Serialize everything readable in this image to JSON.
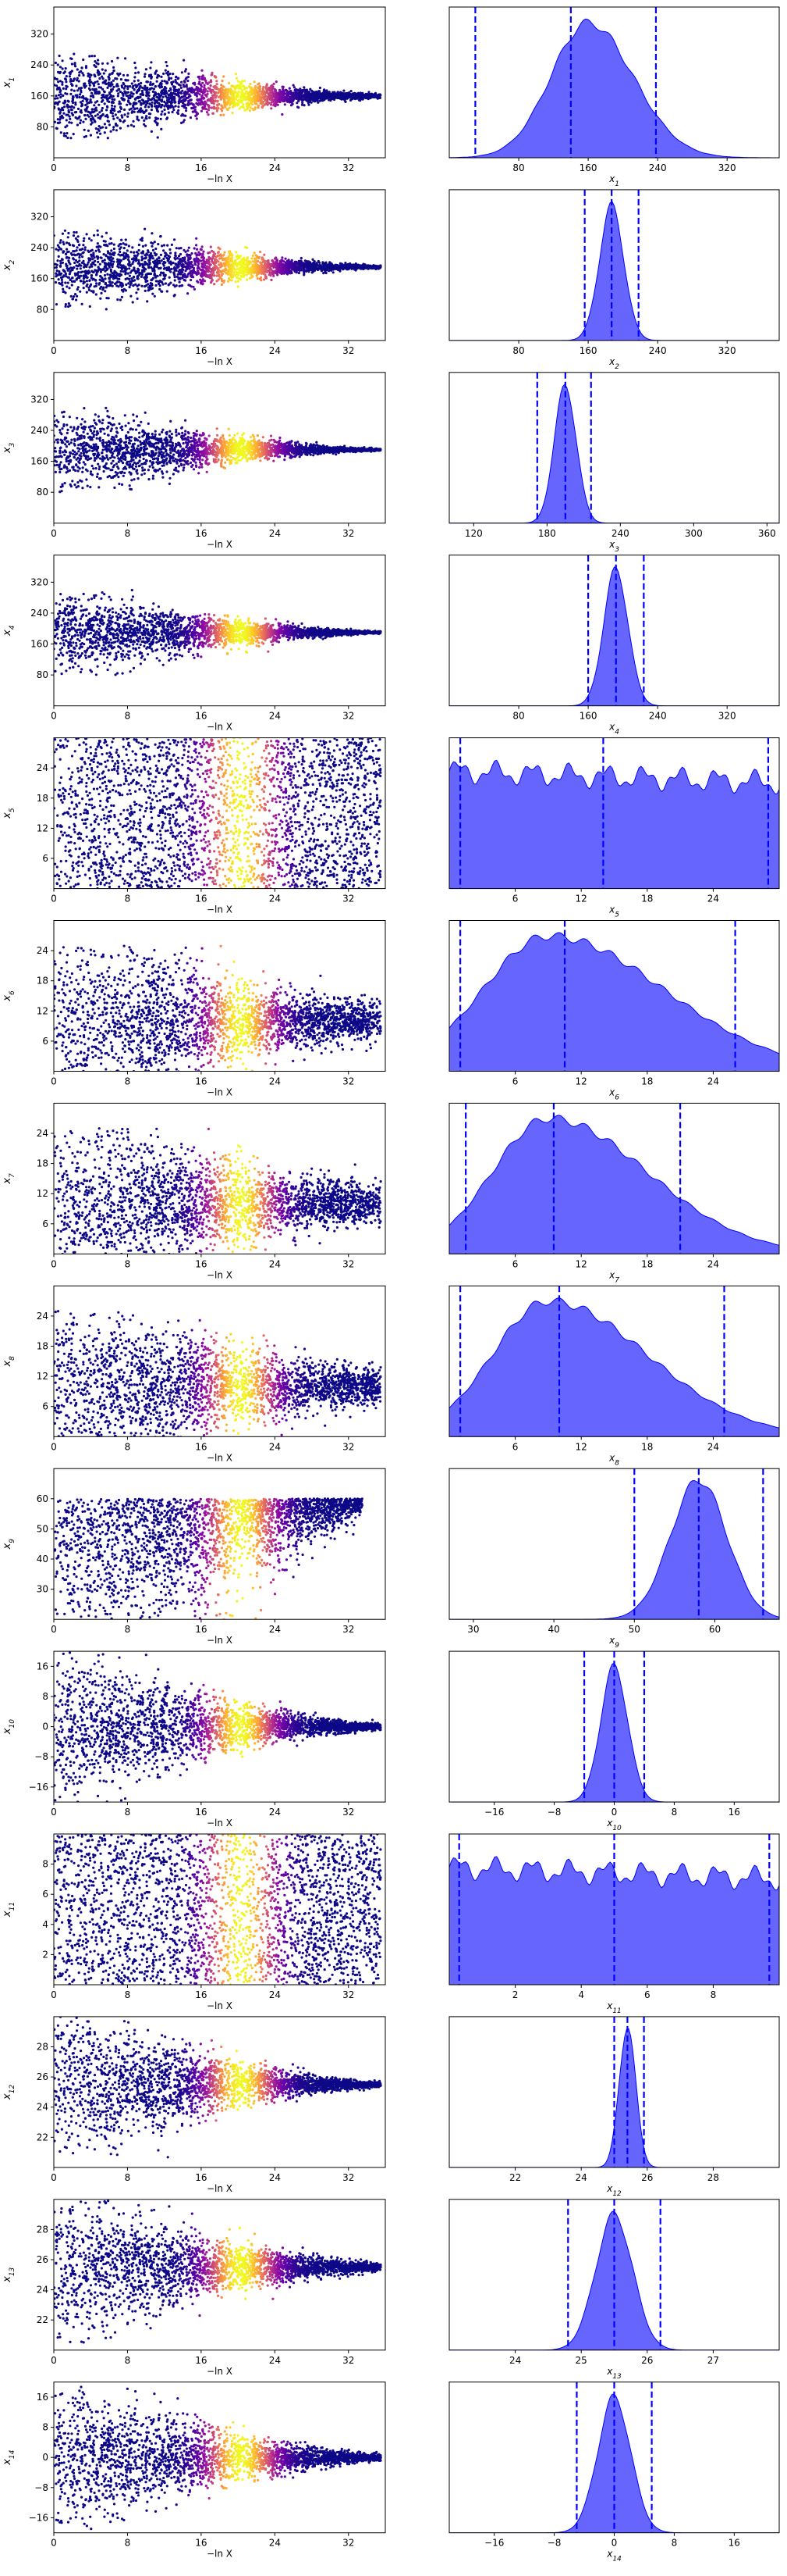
{
  "figure": {
    "colormap": [
      "#0d0887",
      "#5302a3",
      "#8b0aa5",
      "#b83289",
      "#db5c68",
      "#f48849",
      "#febd2a",
      "#f0f921"
    ],
    "hist_fill": "#0000ff",
    "hist_line": "#0000ff"
  },
  "chart_data": [
    {
      "type": "scatter",
      "row": 1,
      "param_label": "x_1",
      "xlabel": "−ln X",
      "xlim": [
        0,
        36
      ],
      "xticks": [
        0,
        8,
        16,
        24,
        32
      ],
      "ylim": [
        0,
        390
      ],
      "yticks": [
        80,
        160,
        240,
        320
      ],
      "center": 160,
      "spread": 110,
      "converge_start": 20,
      "converge_end": 36,
      "final_spread": 6,
      "mode": "funnel"
    },
    {
      "type": "area",
      "row": 1,
      "param_label": "x_1",
      "xlim": [
        0,
        380
      ],
      "xticks": [
        80,
        160,
        240,
        320
      ],
      "mu": 160,
      "sigma": 45,
      "skew": 0.15,
      "quantiles": [
        30,
        140,
        238
      ],
      "peak": 0.92
    },
    {
      "type": "scatter",
      "row": 2,
      "param_label": "x_2",
      "xlabel": "−ln X",
      "xlim": [
        0,
        36
      ],
      "xticks": [
        0,
        8,
        16,
        24,
        32
      ],
      "ylim": [
        0,
        390
      ],
      "yticks": [
        80,
        160,
        240,
        320
      ],
      "center": 190,
      "spread": 110,
      "converge_start": 18,
      "converge_end": 36,
      "final_spread": 4,
      "mode": "funnel"
    },
    {
      "type": "area",
      "row": 2,
      "param_label": "x_2",
      "xlim": [
        0,
        380
      ],
      "xticks": [
        80,
        160,
        240,
        320
      ],
      "mu": 187,
      "sigma": 14,
      "skew": 0,
      "quantiles": [
        156,
        187,
        218
      ],
      "peak": 0.92
    },
    {
      "type": "scatter",
      "row": 3,
      "param_label": "x_3",
      "xlabel": "−ln X",
      "xlim": [
        0,
        36
      ],
      "xticks": [
        0,
        8,
        16,
        24,
        32
      ],
      "ylim": [
        0,
        390
      ],
      "yticks": [
        80,
        160,
        240,
        320
      ],
      "center": 190,
      "spread": 110,
      "converge_start": 12,
      "converge_end": 36,
      "final_spread": 3,
      "mode": "funnel"
    },
    {
      "type": "area",
      "row": 3,
      "param_label": "x_3",
      "xlim": [
        100,
        370
      ],
      "xticks": [
        120,
        180,
        240,
        300,
        360
      ],
      "mu": 195,
      "sigma": 9,
      "skew": 0,
      "quantiles": [
        172,
        195,
        216
      ],
      "peak": 0.92
    },
    {
      "type": "scatter",
      "row": 4,
      "param_label": "x_4",
      "xlabel": "−ln X",
      "xlim": [
        0,
        36
      ],
      "xticks": [
        0,
        8,
        16,
        24,
        32
      ],
      "ylim": [
        0,
        390
      ],
      "yticks": [
        80,
        160,
        240,
        320
      ],
      "center": 190,
      "spread": 110,
      "converge_start": 10,
      "converge_end": 36,
      "final_spread": 3,
      "mode": "funnel"
    },
    {
      "type": "area",
      "row": 4,
      "param_label": "x_4",
      "xlim": [
        0,
        380
      ],
      "xticks": [
        80,
        160,
        240,
        320
      ],
      "mu": 192,
      "sigma": 14,
      "skew": 0,
      "quantiles": [
        160,
        192,
        224
      ],
      "peak": 0.92
    },
    {
      "type": "scatter",
      "row": 5,
      "param_label": "x_5",
      "xlabel": "−ln X",
      "xlim": [
        0,
        36
      ],
      "xticks": [
        0,
        8,
        16,
        24,
        32
      ],
      "ylim": [
        0,
        30
      ],
      "yticks": [
        6,
        12,
        18,
        24
      ],
      "center": 15,
      "spread": 15,
      "converge_start": 30,
      "converge_end": 36,
      "final_spread": 12,
      "mode": "uniform"
    },
    {
      "type": "area",
      "row": 5,
      "param_label": "x_5",
      "xlim": [
        0,
        30
      ],
      "xticks": [
        6,
        12,
        18,
        24
      ],
      "mu": 14,
      "sigma": 40,
      "skew": 0,
      "quantiles": [
        1,
        14,
        29
      ],
      "peak": 0.85,
      "flat": true
    },
    {
      "type": "scatter",
      "row": 6,
      "param_label": "x_6",
      "xlabel": "−ln X",
      "xlim": [
        0,
        36
      ],
      "xticks": [
        0,
        8,
        16,
        24,
        32
      ],
      "ylim": [
        0,
        30
      ],
      "yticks": [
        6,
        12,
        18,
        24
      ],
      "center": 10,
      "spread": 15,
      "converge_start": 22,
      "converge_end": 36,
      "final_spread": 4,
      "mode": "funnel"
    },
    {
      "type": "area",
      "row": 6,
      "param_label": "x_6",
      "xlim": [
        0,
        30
      ],
      "xticks": [
        6,
        12,
        18,
        24
      ],
      "mu": 9,
      "sigma": 7,
      "skew": 0.5,
      "quantiles": [
        1,
        10.5,
        26
      ],
      "peak": 0.92
    },
    {
      "type": "scatter",
      "row": 7,
      "param_label": "x_7",
      "xlabel": "−ln X",
      "xlim": [
        0,
        36
      ],
      "xticks": [
        0,
        8,
        16,
        24,
        32
      ],
      "ylim": [
        0,
        30
      ],
      "yticks": [
        6,
        12,
        18,
        24
      ],
      "center": 10,
      "spread": 15,
      "converge_start": 22,
      "converge_end": 36,
      "final_spread": 4,
      "mode": "funnel"
    },
    {
      "type": "area",
      "row": 7,
      "param_label": "x_7",
      "xlim": [
        0,
        30
      ],
      "xticks": [
        6,
        12,
        18,
        24
      ],
      "mu": 9,
      "sigma": 6,
      "skew": 0.5,
      "quantiles": [
        1.5,
        9.5,
        21
      ],
      "peak": 0.92
    },
    {
      "type": "scatter",
      "row": 8,
      "param_label": "x_8",
      "xlabel": "−ln X",
      "xlim": [
        0,
        36
      ],
      "xticks": [
        0,
        8,
        16,
        24,
        32
      ],
      "ylim": [
        0,
        30
      ],
      "yticks": [
        6,
        12,
        18,
        24
      ],
      "center": 10,
      "spread": 15,
      "converge_start": 22,
      "converge_end": 36,
      "final_spread": 4,
      "mode": "funnel"
    },
    {
      "type": "area",
      "row": 8,
      "param_label": "x_8",
      "xlim": [
        0,
        30
      ],
      "xticks": [
        6,
        12,
        18,
        24
      ],
      "mu": 9,
      "sigma": 6,
      "skew": 0.5,
      "quantiles": [
        1,
        10,
        25
      ],
      "peak": 0.92
    },
    {
      "type": "scatter",
      "row": 9,
      "param_label": "x_9",
      "xlabel": "−ln X",
      "xlim": [
        0,
        36
      ],
      "xticks": [
        0,
        8,
        16,
        24,
        32
      ],
      "ylim": [
        20,
        70
      ],
      "yticks": [
        30,
        40,
        50,
        60
      ],
      "center": 60,
      "spread": 35,
      "converge_start": 18,
      "converge_end": 34,
      "final_spread": 2,
      "mode": "rise"
    },
    {
      "type": "area",
      "row": 9,
      "param_label": "x_9",
      "xlim": [
        27,
        68
      ],
      "xticks": [
        30,
        40,
        50,
        60
      ],
      "mu": 58,
      "sigma": 3.5,
      "skew": 0,
      "quantiles": [
        50,
        58,
        66
      ],
      "peak": 0.92
    },
    {
      "type": "scatter",
      "row": 10,
      "param_label": "x_10",
      "xlabel": "−ln X",
      "xlim": [
        0,
        36
      ],
      "xticks": [
        0,
        8,
        16,
        24,
        32
      ],
      "ylim": [
        -20,
        20
      ],
      "yticks": [
        -16,
        -8,
        0,
        8,
        16
      ],
      "center": 0,
      "spread": 20,
      "converge_start": 12,
      "converge_end": 36,
      "final_spread": 1,
      "mode": "funnel"
    },
    {
      "type": "area",
      "row": 10,
      "param_label": "x_10",
      "xlim": [
        -22,
        22
      ],
      "xticks": [
        -16,
        -8,
        0,
        8,
        16
      ],
      "mu": 0,
      "sigma": 1.8,
      "skew": 0,
      "quantiles": [
        -4,
        0,
        4
      ],
      "peak": 0.92
    },
    {
      "type": "scatter",
      "row": 11,
      "param_label": "x_11",
      "xlabel": "−ln X",
      "xlim": [
        0,
        36
      ],
      "xticks": [
        0,
        8,
        16,
        24,
        32
      ],
      "ylim": [
        0,
        10
      ],
      "yticks": [
        2,
        4,
        6,
        8
      ],
      "center": 5,
      "spread": 5,
      "converge_start": 30,
      "converge_end": 36,
      "final_spread": 4.5,
      "mode": "uniform"
    },
    {
      "type": "area",
      "row": 11,
      "param_label": "x_11",
      "xlim": [
        0,
        10
      ],
      "xticks": [
        2,
        4,
        6,
        8
      ],
      "mu": 5,
      "sigma": 40,
      "skew": 0,
      "quantiles": [
        0.3,
        5,
        9.7
      ],
      "peak": 0.85,
      "flat": true
    },
    {
      "type": "scatter",
      "row": 12,
      "param_label": "x_12",
      "xlabel": "−ln X",
      "xlim": [
        0,
        36
      ],
      "xticks": [
        0,
        8,
        16,
        24,
        32
      ],
      "ylim": [
        20,
        30
      ],
      "yticks": [
        22,
        24,
        26,
        28
      ],
      "center": 25.5,
      "spread": 5,
      "converge_start": 8,
      "converge_end": 36,
      "final_spread": 0.2,
      "mode": "funnel"
    },
    {
      "type": "area",
      "row": 12,
      "param_label": "x_12",
      "xlim": [
        20,
        30
      ],
      "xticks": [
        22,
        24,
        26,
        28
      ],
      "mu": 25.4,
      "sigma": 0.25,
      "skew": 0,
      "quantiles": [
        25,
        25.4,
        25.9
      ],
      "peak": 0.92
    },
    {
      "type": "scatter",
      "row": 13,
      "param_label": "x_13",
      "xlabel": "−ln X",
      "xlim": [
        0,
        36
      ],
      "xticks": [
        0,
        8,
        16,
        24,
        32
      ],
      "ylim": [
        20,
        30
      ],
      "yticks": [
        22,
        24,
        26,
        28
      ],
      "center": 25.5,
      "spread": 5,
      "converge_start": 8,
      "converge_end": 36,
      "final_spread": 0.3,
      "mode": "funnel"
    },
    {
      "type": "area",
      "row": 13,
      "param_label": "x_13",
      "xlim": [
        23,
        28
      ],
      "xticks": [
        24,
        25,
        26,
        27
      ],
      "mu": 25.5,
      "sigma": 0.28,
      "skew": 0,
      "quantiles": [
        24.8,
        25.5,
        26.2
      ],
      "peak": 0.92
    },
    {
      "type": "scatter",
      "row": 14,
      "param_label": "x_14",
      "xlabel": "−ln X",
      "xlim": [
        0,
        36
      ],
      "xticks": [
        0,
        8,
        16,
        24,
        32
      ],
      "ylim": [
        -20,
        20
      ],
      "yticks": [
        -16,
        -8,
        0,
        8,
        16
      ],
      "center": 0,
      "spread": 20,
      "converge_start": 10,
      "converge_end": 36,
      "final_spread": 1,
      "mode": "funnel"
    },
    {
      "type": "area",
      "row": 14,
      "param_label": "x_14",
      "xlim": [
        -22,
        22
      ],
      "xticks": [
        -16,
        -8,
        0,
        8,
        16
      ],
      "mu": 0,
      "sigma": 2.2,
      "skew": 0,
      "quantiles": [
        -5,
        0,
        5
      ],
      "peak": 0.92
    }
  ]
}
